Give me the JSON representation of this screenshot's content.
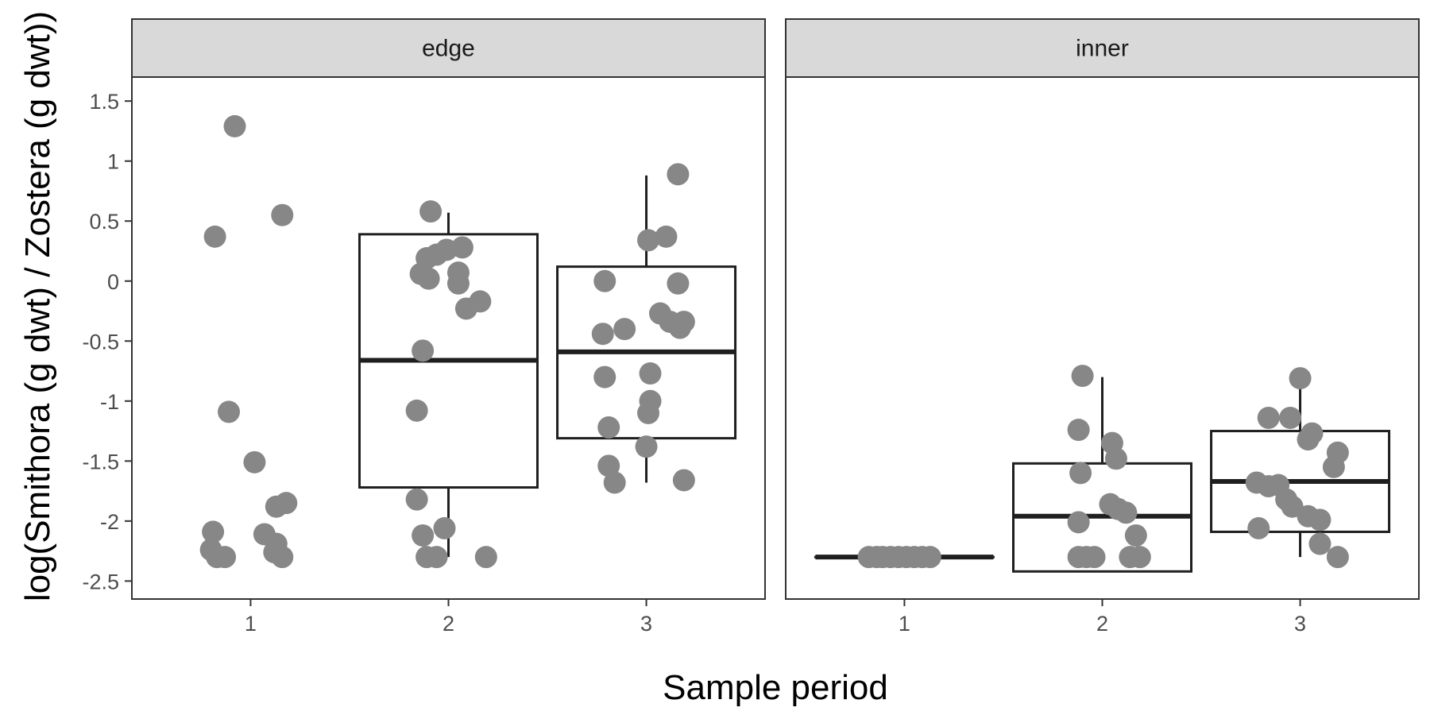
{
  "chart_data": {
    "type": "box",
    "xlabel": "Sample period",
    "ylabel": "log(Smithora (g dwt) / Zostera (g dwt))",
    "categories": [
      "1",
      "2",
      "3"
    ],
    "ylim": [
      -2.65,
      1.7
    ],
    "yticks": [
      1.5,
      1,
      0.5,
      0,
      -0.5,
      -1,
      -1.5,
      -2,
      -2.5
    ],
    "ytick_labels": [
      "1.5",
      "1",
      "0.5",
      "0",
      "-0.5",
      "-1",
      "-1.5",
      "-2",
      "-2.5"
    ],
    "grid": false,
    "colors": {
      "points": "#878787",
      "box": "#1f1f1f",
      "strip": "#d9d9d9",
      "frame": "#333333"
    },
    "panels": [
      {
        "label": "edge",
        "boxes": [
          null,
          {
            "category": "2",
            "lower": -1.72,
            "q1": -1.72,
            "median": -0.66,
            "q3": 0.39,
            "upper": 0.57,
            "lower_whisker": -2.3
          },
          {
            "category": "3",
            "q1": -1.31,
            "median": -0.59,
            "q3": 0.12,
            "lower_whisker": -1.68,
            "upper_whisker": 0.88
          }
        ],
        "points": [
          {
            "x": 0.92,
            "y": 1.29
          },
          {
            "x": 0.82,
            "y": 0.37
          },
          {
            "x": 1.16,
            "y": 0.55
          },
          {
            "x": 0.89,
            "y": -1.09
          },
          {
            "x": 1.02,
            "y": -1.51
          },
          {
            "x": 1.13,
            "y": -1.88
          },
          {
            "x": 1.18,
            "y": -1.85
          },
          {
            "x": 0.81,
            "y": -2.09
          },
          {
            "x": 1.07,
            "y": -2.11
          },
          {
            "x": 1.13,
            "y": -2.19
          },
          {
            "x": 0.8,
            "y": -2.24
          },
          {
            "x": 0.83,
            "y": -2.3
          },
          {
            "x": 0.87,
            "y": -2.3
          },
          {
            "x": 1.12,
            "y": -2.26
          },
          {
            "x": 1.16,
            "y": -2.3
          },
          {
            "x": 1.91,
            "y": 0.58
          },
          {
            "x": 1.89,
            "y": 0.19
          },
          {
            "x": 1.94,
            "y": 0.22
          },
          {
            "x": 1.99,
            "y": 0.26
          },
          {
            "x": 2.07,
            "y": 0.28
          },
          {
            "x": 1.86,
            "y": 0.06
          },
          {
            "x": 1.9,
            "y": 0.02
          },
          {
            "x": 2.05,
            "y": 0.07
          },
          {
            "x": 2.05,
            "y": -0.02
          },
          {
            "x": 2.09,
            "y": -0.23
          },
          {
            "x": 2.16,
            "y": -0.17
          },
          {
            "x": 1.87,
            "y": -0.58
          },
          {
            "x": 1.84,
            "y": -1.08
          },
          {
            "x": 1.84,
            "y": -1.82
          },
          {
            "x": 1.87,
            "y": -2.12
          },
          {
            "x": 1.98,
            "y": -2.06
          },
          {
            "x": 1.89,
            "y": -2.3
          },
          {
            "x": 1.94,
            "y": -2.3
          },
          {
            "x": 2.19,
            "y": -2.3
          },
          {
            "x": 3.16,
            "y": 0.89
          },
          {
            "x": 3.01,
            "y": 0.34
          },
          {
            "x": 3.1,
            "y": 0.37
          },
          {
            "x": 2.79,
            "y": 0.0
          },
          {
            "x": 3.16,
            "y": -0.02
          },
          {
            "x": 2.78,
            "y": -0.44
          },
          {
            "x": 2.89,
            "y": -0.4
          },
          {
            "x": 3.07,
            "y": -0.27
          },
          {
            "x": 3.12,
            "y": -0.34
          },
          {
            "x": 3.17,
            "y": -0.39
          },
          {
            "x": 3.19,
            "y": -0.34
          },
          {
            "x": 2.79,
            "y": -0.8
          },
          {
            "x": 3.02,
            "y": -0.77
          },
          {
            "x": 3.02,
            "y": -1.0
          },
          {
            "x": 3.01,
            "y": -1.1
          },
          {
            "x": 2.81,
            "y": -1.22
          },
          {
            "x": 3.0,
            "y": -1.38
          },
          {
            "x": 2.81,
            "y": -1.54
          },
          {
            "x": 2.84,
            "y": -1.68
          },
          {
            "x": 3.19,
            "y": -1.66
          }
        ]
      },
      {
        "label": "inner",
        "boxes": [
          {
            "category": "1",
            "q1": -2.3,
            "median": -2.3,
            "q3": -2.3,
            "lower_whisker": -2.3,
            "upper_whisker": -2.3
          },
          {
            "category": "2",
            "q1": -2.42,
            "median": -1.96,
            "q3": -1.52,
            "lower_whisker": -2.42,
            "upper_whisker": -0.8
          },
          {
            "category": "3",
            "q1": -2.09,
            "median": -1.67,
            "q3": -1.25,
            "lower_whisker": -2.3,
            "upper_whisker": -0.82
          }
        ],
        "points": [
          {
            "x": 0.82,
            "y": -2.3
          },
          {
            "x": 0.86,
            "y": -2.3
          },
          {
            "x": 0.89,
            "y": -2.3
          },
          {
            "x": 0.93,
            "y": -2.3
          },
          {
            "x": 0.97,
            "y": -2.3
          },
          {
            "x": 1.01,
            "y": -2.3
          },
          {
            "x": 1.05,
            "y": -2.3
          },
          {
            "x": 1.09,
            "y": -2.3
          },
          {
            "x": 1.13,
            "y": -2.3
          },
          {
            "x": 1.9,
            "y": -0.79
          },
          {
            "x": 1.88,
            "y": -1.24
          },
          {
            "x": 2.05,
            "y": -1.35
          },
          {
            "x": 2.07,
            "y": -1.48
          },
          {
            "x": 1.89,
            "y": -1.6
          },
          {
            "x": 2.04,
            "y": -1.86
          },
          {
            "x": 2.08,
            "y": -1.9
          },
          {
            "x": 2.12,
            "y": -1.93
          },
          {
            "x": 1.88,
            "y": -2.01
          },
          {
            "x": 2.17,
            "y": -2.12
          },
          {
            "x": 1.88,
            "y": -2.3
          },
          {
            "x": 1.92,
            "y": -2.3
          },
          {
            "x": 1.96,
            "y": -2.3
          },
          {
            "x": 2.14,
            "y": -2.3
          },
          {
            "x": 2.19,
            "y": -2.3
          },
          {
            "x": 3.0,
            "y": -0.81
          },
          {
            "x": 2.84,
            "y": -1.14
          },
          {
            "x": 2.95,
            "y": -1.14
          },
          {
            "x": 3.06,
            "y": -1.27
          },
          {
            "x": 3.04,
            "y": -1.32
          },
          {
            "x": 3.19,
            "y": -1.43
          },
          {
            "x": 3.17,
            "y": -1.55
          },
          {
            "x": 2.78,
            "y": -1.68
          },
          {
            "x": 2.84,
            "y": -1.71
          },
          {
            "x": 2.89,
            "y": -1.7
          },
          {
            "x": 2.93,
            "y": -1.82
          },
          {
            "x": 2.96,
            "y": -1.88
          },
          {
            "x": 3.04,
            "y": -1.96
          },
          {
            "x": 3.1,
            "y": -1.99
          },
          {
            "x": 2.79,
            "y": -2.06
          },
          {
            "x": 3.1,
            "y": -2.19
          },
          {
            "x": 3.19,
            "y": -2.3
          }
        ]
      }
    ]
  }
}
